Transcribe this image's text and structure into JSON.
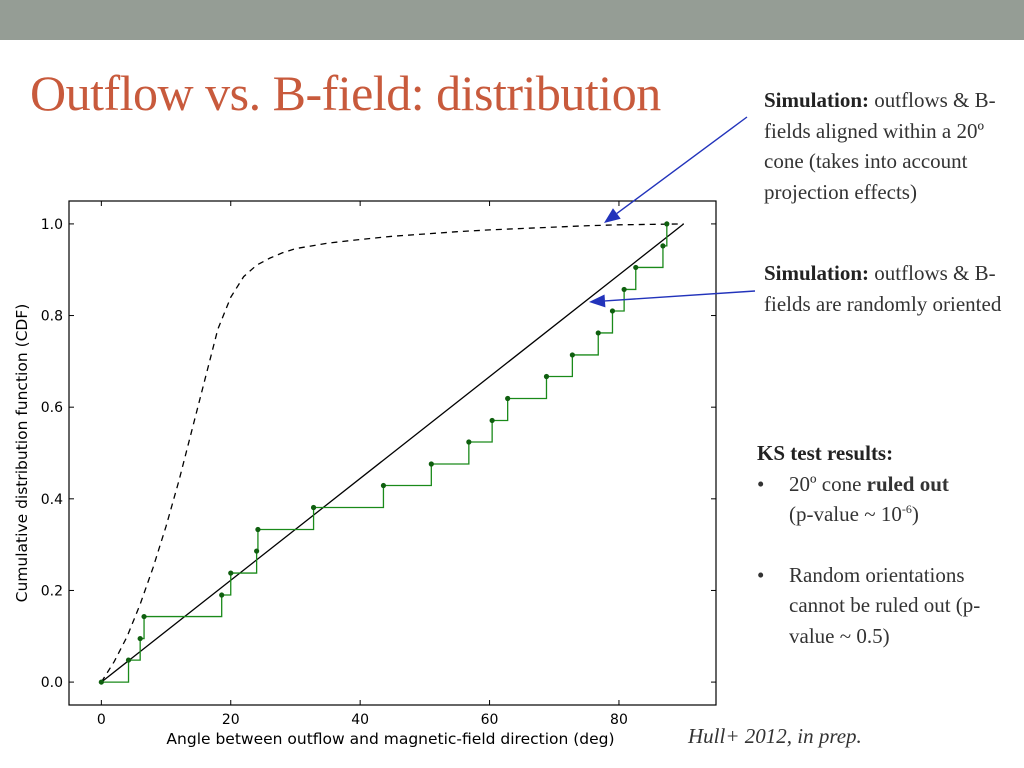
{
  "slide": {
    "title": "Outflow vs. B-field: distribution",
    "colors": {
      "top_bar": "#959d95",
      "title": "#c85a3c",
      "arrows": "#2233bb",
      "text": "#333333"
    }
  },
  "annotations": [
    {
      "heading": "Simulation:",
      "text": " outflows & B-fields aligned within a 20º cone (takes into account projection effects)",
      "points_to": "dashed curve"
    },
    {
      "heading": "Simulation:",
      "text": " outflows & B-fields are randomly oriented",
      "points_to": "solid diagonal line"
    }
  ],
  "ks": {
    "heading": "KS test results:",
    "bullet": "•",
    "item1_pre": "20º cone ",
    "item1_bold": "ruled out",
    "item1_line2": "(p-value ~ 10",
    "item1_exp": "-6",
    "item1_close": ")",
    "item2": "Random orientations cannot be ruled out (p-value ~ 0.5)"
  },
  "citation": "Hull+ 2012, in prep.",
  "chart_data": {
    "type": "line",
    "xlabel": "Angle between outflow and magnetic-field direction (deg)",
    "ylabel": "Cumulative distribution function (CDF)",
    "xlim": [
      -5,
      95
    ],
    "ylim": [
      -0.05,
      1.05
    ],
    "xticks": [
      0,
      20,
      40,
      60,
      80
    ],
    "yticks": [
      0.0,
      0.2,
      0.4,
      0.6,
      0.8,
      1.0
    ],
    "xtick_labels": [
      "0",
      "20",
      "40",
      "60",
      "80"
    ],
    "ytick_labels": [
      "0.0",
      "0.2",
      "0.4",
      "0.6",
      "0.8",
      "1.0"
    ],
    "grid": false,
    "series": [
      {
        "style": "dashed",
        "color": "#000000",
        "x": [
          0,
          2,
          4,
          6,
          8,
          10,
          12,
          14,
          16,
          18,
          20,
          22,
          24,
          26,
          28,
          30,
          35,
          40,
          45,
          50,
          55,
          60,
          65,
          70,
          75,
          80,
          85,
          90
        ],
        "y": [
          0.0,
          0.045,
          0.1,
          0.17,
          0.25,
          0.34,
          0.44,
          0.55,
          0.66,
          0.77,
          0.84,
          0.885,
          0.91,
          0.925,
          0.937,
          0.946,
          0.958,
          0.966,
          0.973,
          0.978,
          0.983,
          0.987,
          0.99,
          0.993,
          0.996,
          0.998,
          0.999,
          1.0
        ]
      },
      {
        "style": "solid",
        "color": "#000000",
        "x": [
          0,
          90
        ],
        "y": [
          0.0,
          1.0
        ]
      },
      {
        "style": "step",
        "color": "#1a8a1a",
        "x": [
          0,
          4.2,
          6.0,
          6.6,
          18.6,
          20.0,
          24.0,
          24.2,
          32.8,
          43.6,
          51.0,
          56.8,
          60.4,
          62.8,
          68.8,
          72.8,
          76.8,
          79.0,
          80.8,
          82.6,
          86.8,
          87.4
        ],
        "y": [
          0.0,
          0.048,
          0.095,
          0.143,
          0.19,
          0.238,
          0.286,
          0.333,
          0.381,
          0.429,
          0.476,
          0.524,
          0.571,
          0.619,
          0.667,
          0.714,
          0.762,
          0.81,
          0.857,
          0.905,
          0.952,
          1.0
        ]
      }
    ]
  }
}
